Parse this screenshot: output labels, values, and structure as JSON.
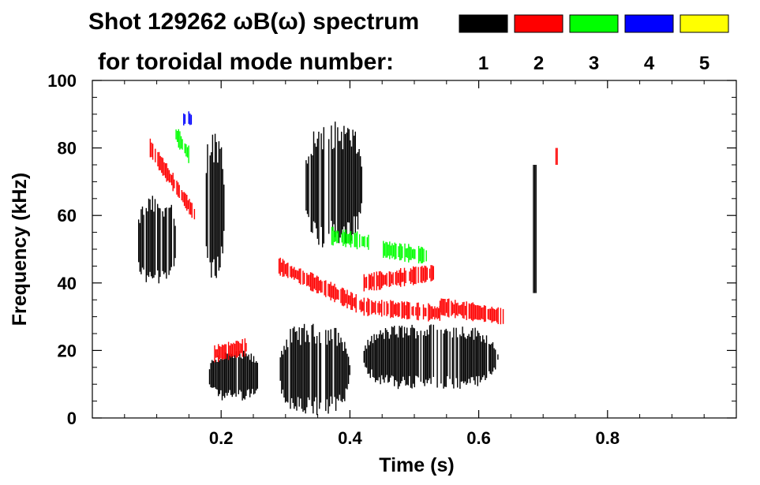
{
  "chart_data": {
    "type": "heatmap",
    "title_line1": "Shot 129262 ωB(ω) spectrum",
    "title_line2": "for toroidal mode number:",
    "xlabel": "Time (s)",
    "ylabel": "Frequency (kHz)",
    "xlim": [
      0.0,
      1.0
    ],
    "ylim": [
      0,
      100
    ],
    "x_ticks": [
      0.2,
      0.4,
      0.6,
      0.8
    ],
    "x_tick_labels": [
      "0.2",
      "0.4",
      "0.6",
      "0.8"
    ],
    "y_ticks": [
      0,
      20,
      40,
      60,
      80,
      100
    ],
    "y_tick_labels": [
      "0",
      "20",
      "40",
      "60",
      "80",
      "100"
    ],
    "legend": [
      {
        "label": "1",
        "color": "#000000"
      },
      {
        "label": "2",
        "color": "#ff0000"
      },
      {
        "label": "3",
        "color": "#00ff00"
      },
      {
        "label": "4",
        "color": "#0000ff"
      },
      {
        "label": "5",
        "color": "#ffff00"
      }
    ],
    "legend_placement": "top-right",
    "grid": false,
    "modes": [
      {
        "n": 1,
        "color": "#000000",
        "features": [
          {
            "kind": "blob",
            "t": [
              0.07,
              0.13
            ],
            "f": [
              38,
              66
            ]
          },
          {
            "kind": "blob",
            "t": [
              0.175,
              0.205
            ],
            "f": [
              40,
              86
            ]
          },
          {
            "kind": "blob",
            "t": [
              0.18,
              0.26
            ],
            "f": [
              5,
              20
            ]
          },
          {
            "kind": "blob",
            "t": [
              0.29,
              0.4
            ],
            "f": [
              0,
              28
            ]
          },
          {
            "kind": "blob",
            "t": [
              0.33,
              0.42
            ],
            "f": [
              50,
              88
            ]
          },
          {
            "kind": "blob",
            "t": [
              0.42,
              0.63
            ],
            "f": [
              8,
              28
            ]
          },
          {
            "kind": "streak",
            "t": [
              0.685,
              0.69
            ],
            "f": [
              37,
              75
            ]
          }
        ]
      },
      {
        "n": 2,
        "color": "#ff0000",
        "features": [
          {
            "kind": "band",
            "t": [
              0.09,
              0.16
            ],
            "f": [
              80,
              60
            ]
          },
          {
            "kind": "band",
            "t": [
              0.19,
              0.24
            ],
            "f": [
              19,
              21
            ]
          },
          {
            "kind": "band",
            "t": [
              0.29,
              0.42
            ],
            "f": [
              45,
              33
            ]
          },
          {
            "kind": "band",
            "t": [
              0.42,
              0.54
            ],
            "f": [
              33,
              31
            ]
          },
          {
            "kind": "band",
            "t": [
              0.42,
              0.53
            ],
            "f": [
              40,
              43
            ]
          },
          {
            "kind": "band",
            "t": [
              0.54,
              0.64
            ],
            "f": [
              33,
              30
            ]
          },
          {
            "kind": "streak",
            "t": [
              0.72,
              0.722
            ],
            "f": [
              75,
              80
            ]
          }
        ]
      },
      {
        "n": 3,
        "color": "#00ff00",
        "features": [
          {
            "kind": "band",
            "t": [
              0.13,
              0.15
            ],
            "f": [
              84,
              78
            ]
          },
          {
            "kind": "band",
            "t": [
              0.37,
              0.43
            ],
            "f": [
              54,
              52
            ]
          },
          {
            "kind": "band",
            "t": [
              0.45,
              0.52
            ],
            "f": [
              50,
              48
            ]
          }
        ]
      },
      {
        "n": 4,
        "color": "#0000ff",
        "features": [
          {
            "kind": "blob",
            "t": [
              0.14,
              0.155
            ],
            "f": [
              86,
              91
            ]
          }
        ]
      }
    ]
  }
}
